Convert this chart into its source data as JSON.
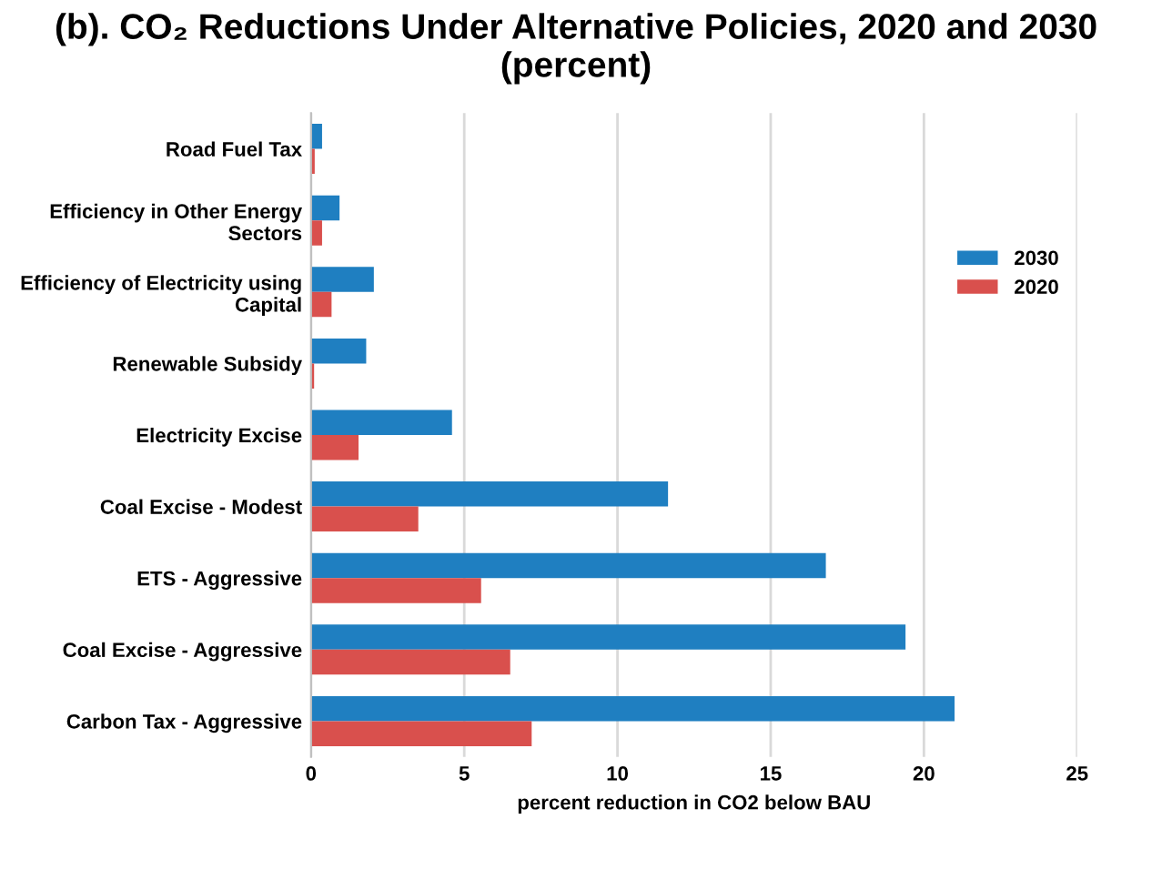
{
  "chart_data": {
    "type": "bar",
    "orientation": "horizontal",
    "title": "(b). CO₂ Reductions Under Alternative Policies, 2020 and 2030\n(percent)",
    "xlabel": "percent reduction in CO2 below BAU",
    "categories": [
      "Road Fuel Tax",
      "Efficiency in Other Energy\nSectors",
      "Efficiency of Electricity using\nCapital",
      "Renewable Subsidy",
      "Electricity Excise",
      "Coal Excise - Modest",
      "ETS - Aggressive",
      "Coal Excise - Aggressive",
      "Carbon Tax - Aggressive"
    ],
    "series": [
      {
        "name": "2030",
        "color": "#1f7fc1",
        "values": [
          0.36,
          0.93,
          2.05,
          1.8,
          4.6,
          11.65,
          16.8,
          19.4,
          21.0
        ]
      },
      {
        "name": "2020",
        "color": "#d9504d",
        "values": [
          0.12,
          0.36,
          0.67,
          0.1,
          1.55,
          3.5,
          5.55,
          6.5,
          7.2
        ]
      }
    ],
    "xlim": [
      0,
      25
    ],
    "xticks": [
      0,
      5,
      10,
      15,
      20,
      25
    ],
    "grid": "x",
    "legend": "right"
  }
}
